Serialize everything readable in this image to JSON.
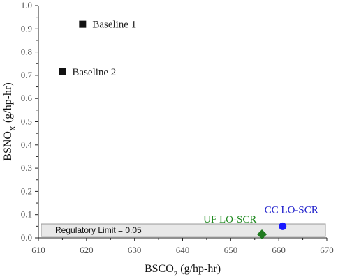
{
  "chart_data": {
    "type": "scatter",
    "xlabel": "BSCO",
    "xlabel_sub": "2",
    "xlabel_suffix": " (g/hp-hr)",
    "ylabel": "BSNO",
    "ylabel_sub": "X",
    "ylabel_suffix": " (g/hp-hr)",
    "xlim": [
      610,
      670
    ],
    "ylim": [
      0.0,
      1.0
    ],
    "xticks": [
      610,
      620,
      630,
      640,
      650,
      660,
      670
    ],
    "xtick_labels": [
      "610",
      "620",
      "630",
      "640",
      "650",
      "660",
      "670"
    ],
    "yticks": [
      0.0,
      0.1,
      0.2,
      0.3,
      0.4,
      0.5,
      0.6,
      0.7,
      0.8,
      0.9,
      1.0
    ],
    "ytick_labels": [
      "0.0",
      "0.1",
      "0.2",
      "0.3",
      "0.4",
      "0.5",
      "0.6",
      "0.7",
      "0.8",
      "0.9",
      "1.0"
    ],
    "grid": false,
    "points": [
      {
        "label": "Baseline 1",
        "x": 619.2,
        "y": 0.92,
        "marker": "square",
        "color": "#111111",
        "label_color": "#222222"
      },
      {
        "label": "Baseline 2",
        "x": 615.0,
        "y": 0.715,
        "marker": "square",
        "color": "#111111",
        "label_color": "#222222"
      },
      {
        "label": "UF LO-SCR",
        "x": 656.5,
        "y": 0.015,
        "marker": "diamond",
        "color": "#1f7a1f",
        "label_color": "#1f8a1f"
      },
      {
        "label": "CC LO-SCR",
        "x": 660.8,
        "y": 0.05,
        "marker": "circle",
        "color": "#1a1aff",
        "label_color": "#2222cc"
      }
    ],
    "regulatory_band": {
      "label": "Regulatory Limit = 0.05",
      "x_range": [
        610,
        670
      ],
      "y_range": [
        0.0,
        0.06
      ],
      "fill": "#e8e8e8",
      "stroke": "#9a9a9a"
    }
  }
}
